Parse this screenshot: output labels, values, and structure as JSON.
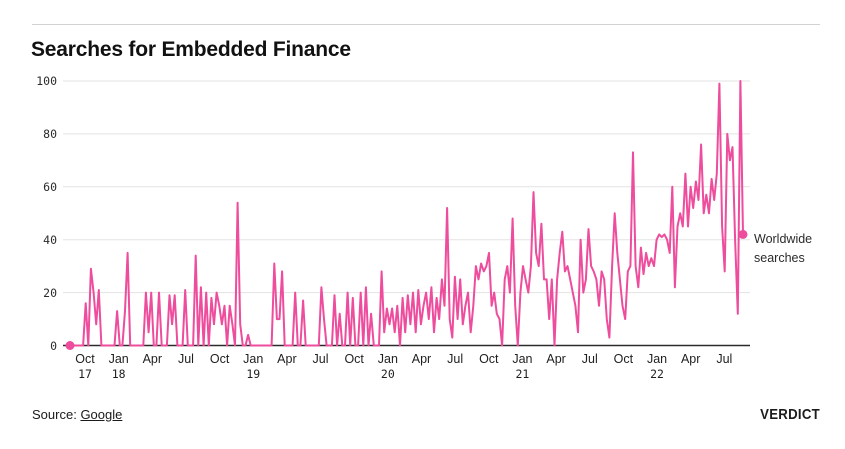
{
  "header": {
    "title": "Searches for Embedded Finance"
  },
  "legend": {
    "label": "Worldwide searches"
  },
  "footer": {
    "source_label": "Source:",
    "source_link": "Google",
    "brand": "VERDICT"
  },
  "colors": {
    "line": "#ee4c9c",
    "grid": "#e3e3e3",
    "axis": "#2b2b2b"
  },
  "chart_data": {
    "type": "line",
    "title": "Searches for Embedded Finance",
    "xlabel": "",
    "ylabel": "",
    "ylim": [
      0,
      100
    ],
    "yticks": [
      0,
      20,
      40,
      60,
      80,
      100
    ],
    "grid": "horizontal",
    "legend_position": "right-of-last-point",
    "markers": "first-and-last-point",
    "x_unit": "weekly, Sep 2017 - Sep 2022",
    "xticks": [
      {
        "month": "Oct",
        "year": "17"
      },
      {
        "month": "Jan",
        "year": "18"
      },
      {
        "month": "Apr",
        "year": ""
      },
      {
        "month": "Jul",
        "year": ""
      },
      {
        "month": "Oct",
        "year": ""
      },
      {
        "month": "Jan",
        "year": "19"
      },
      {
        "month": "Apr",
        "year": ""
      },
      {
        "month": "Jul",
        "year": ""
      },
      {
        "month": "Oct",
        "year": ""
      },
      {
        "month": "Jan",
        "year": "20"
      },
      {
        "month": "Apr",
        "year": ""
      },
      {
        "month": "Jul",
        "year": ""
      },
      {
        "month": "Oct",
        "year": ""
      },
      {
        "month": "Jan",
        "year": "21"
      },
      {
        "month": "Apr",
        "year": ""
      },
      {
        "month": "Jul",
        "year": ""
      },
      {
        "month": "Oct",
        "year": ""
      },
      {
        "month": "Jan",
        "year": "22"
      },
      {
        "month": "Apr",
        "year": ""
      },
      {
        "month": "Jul",
        "year": ""
      }
    ],
    "series": [
      {
        "name": "Worldwide searches",
        "values": [
          0,
          0,
          0,
          0,
          0,
          0,
          16,
          0,
          29,
          20,
          8,
          21,
          0,
          0,
          0,
          0,
          0,
          0,
          13,
          0,
          0,
          13,
          35,
          0,
          0,
          0,
          0,
          0,
          0,
          20,
          5,
          20,
          0,
          0,
          20,
          0,
          0,
          0,
          19,
          8,
          19,
          0,
          0,
          0,
          21,
          0,
          0,
          0,
          34,
          0,
          22,
          0,
          20,
          0,
          18,
          8,
          20,
          15,
          8,
          15,
          0,
          15,
          8,
          0,
          54,
          8,
          0,
          0,
          4,
          0,
          0,
          0,
          0,
          0,
          0,
          0,
          0,
          0,
          31,
          10,
          10,
          28,
          0,
          0,
          0,
          0,
          20,
          0,
          0,
          17,
          0,
          0,
          0,
          0,
          0,
          0,
          22,
          10,
          0,
          0,
          0,
          19,
          0,
          12,
          0,
          0,
          20,
          0,
          18,
          0,
          0,
          20,
          0,
          22,
          0,
          12,
          0,
          0,
          0,
          28,
          5,
          14,
          8,
          14,
          5,
          15,
          0,
          18,
          5,
          19,
          8,
          20,
          5,
          21,
          8,
          15,
          20,
          10,
          22,
          5,
          18,
          10,
          25,
          15,
          52,
          10,
          3,
          26,
          10,
          25,
          8,
          15,
          20,
          5,
          15,
          30,
          25,
          31,
          28,
          30,
          35,
          15,
          20,
          12,
          10,
          0,
          25,
          30,
          20,
          48,
          15,
          0,
          20,
          30,
          25,
          20,
          30,
          58,
          35,
          30,
          46,
          25,
          25,
          10,
          25,
          0,
          25,
          35,
          43,
          28,
          30,
          25,
          20,
          15,
          5,
          40,
          20,
          25,
          44,
          30,
          28,
          25,
          15,
          28,
          25,
          10,
          3,
          30,
          50,
          35,
          25,
          15,
          10,
          28,
          30,
          73,
          30,
          22,
          37,
          27,
          35,
          30,
          33,
          30,
          40,
          42,
          41,
          42,
          40,
          35,
          60,
          22,
          45,
          50,
          45,
          65,
          45,
          60,
          52,
          62,
          55,
          76,
          50,
          57,
          50,
          63,
          55,
          65,
          99,
          45,
          28,
          80,
          70,
          75,
          40,
          12,
          100,
          42
        ]
      }
    ]
  }
}
